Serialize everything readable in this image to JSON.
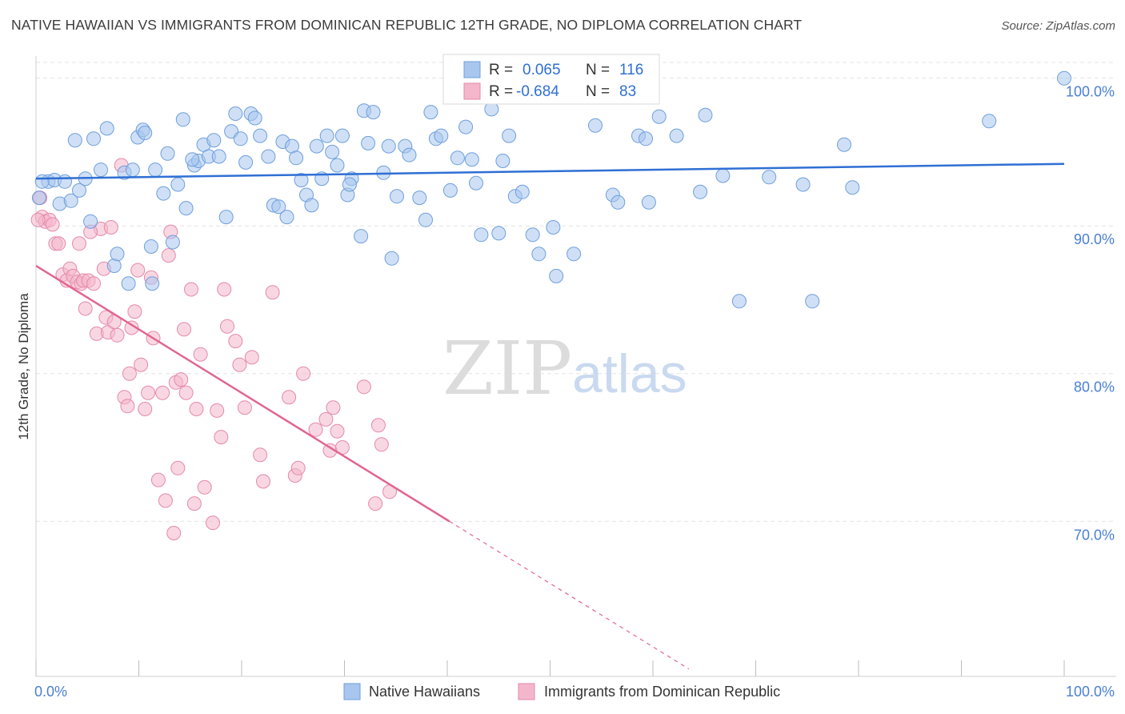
{
  "header": {
    "title": "NATIVE HAWAIIAN VS IMMIGRANTS FROM DOMINICAN REPUBLIC 12TH GRADE, NO DIPLOMA CORRELATION CHART",
    "source": "Source: ZipAtlas.com"
  },
  "watermark": {
    "zip": "ZIP",
    "atlas": "atlas"
  },
  "colors": {
    "blue": "#2f6fd4",
    "blue_fill": "#a8c6ee",
    "pink": "#e0668f",
    "pink_fill": "#f4b6cb",
    "grid": "#e3e3e3",
    "tick_text": "#4a7fd4"
  },
  "stats": {
    "blue": {
      "r_label": "R =",
      "r_value": "0.065",
      "n_label": "N =",
      "n_value": "116"
    },
    "pink": {
      "r_label": "R =",
      "r_value": "-0.684",
      "n_label": "N =",
      "n_value": "83"
    }
  },
  "chart_data": {
    "type": "scatter",
    "title": "NATIVE HAWAIIAN VS IMMIGRANTS FROM DOMINICAN REPUBLIC 12TH GRADE, NO DIPLOMA CORRELATION CHART",
    "xlabel": "",
    "ylabel": "12th Grade, No Diploma",
    "xlim": [
      0,
      100
    ],
    "ylim": [
      59.5,
      101.5
    ],
    "x_tick_labels": [
      "0.0%",
      "100.0%"
    ],
    "y_ticks": [
      70,
      80,
      90,
      100
    ],
    "y_tick_labels": [
      "70.0%",
      "80.0%",
      "90.0%",
      "100.0%"
    ],
    "grid": true,
    "legend_position": "bottom-center",
    "series": [
      {
        "name": "Native Hawaiians",
        "color": "#2f6fd4",
        "trend": {
          "x0": 0,
          "y0": 93.2,
          "x1": 100,
          "y1": 94.2
        },
        "points": [
          [
            0.3,
            91.9
          ],
          [
            1.2,
            93.0
          ],
          [
            1.8,
            93.1
          ],
          [
            2.3,
            91.5
          ],
          [
            2.8,
            93.0
          ],
          [
            3.4,
            91.7
          ],
          [
            3.8,
            95.8
          ],
          [
            4.2,
            92.4
          ],
          [
            4.8,
            93.2
          ],
          [
            5.3,
            90.3
          ],
          [
            5.6,
            95.9
          ],
          [
            6.3,
            93.8
          ],
          [
            6.9,
            96.6
          ],
          [
            7.6,
            87.3
          ],
          [
            7.9,
            88.1
          ],
          [
            8.6,
            93.6
          ],
          [
            9.0,
            86.1
          ],
          [
            9.4,
            93.8
          ],
          [
            9.9,
            96.0
          ],
          [
            10.4,
            96.5
          ],
          [
            10.6,
            96.3
          ],
          [
            11.2,
            88.6
          ],
          [
            11.6,
            93.8
          ],
          [
            12.4,
            92.2
          ],
          [
            12.8,
            94.9
          ],
          [
            13.3,
            88.9
          ],
          [
            13.8,
            92.8
          ],
          [
            14.3,
            97.2
          ],
          [
            14.6,
            91.2
          ],
          [
            15.4,
            94.1
          ],
          [
            15.8,
            94.4
          ],
          [
            16.3,
            95.5
          ],
          [
            16.8,
            94.7
          ],
          [
            17.3,
            95.8
          ],
          [
            17.8,
            94.7
          ],
          [
            18.5,
            90.6
          ],
          [
            19.0,
            96.4
          ],
          [
            19.4,
            97.6
          ],
          [
            19.9,
            95.9
          ],
          [
            20.4,
            94.3
          ],
          [
            20.9,
            97.6
          ],
          [
            21.3,
            97.3
          ],
          [
            21.8,
            96.1
          ],
          [
            22.6,
            94.7
          ],
          [
            23.1,
            91.4
          ],
          [
            23.6,
            91.3
          ],
          [
            24.0,
            95.7
          ],
          [
            24.4,
            90.6
          ],
          [
            24.9,
            95.4
          ],
          [
            25.3,
            94.6
          ],
          [
            25.8,
            93.1
          ],
          [
            26.3,
            92.1
          ],
          [
            26.8,
            91.4
          ],
          [
            27.3,
            95.4
          ],
          [
            27.8,
            93.2
          ],
          [
            28.3,
            96.1
          ],
          [
            28.8,
            95.0
          ],
          [
            29.3,
            94.1
          ],
          [
            29.8,
            96.1
          ],
          [
            30.3,
            92.1
          ],
          [
            30.7,
            93.2
          ],
          [
            31.6,
            89.3
          ],
          [
            31.9,
            97.8
          ],
          [
            32.3,
            95.6
          ],
          [
            32.8,
            97.7
          ],
          [
            33.8,
            93.6
          ],
          [
            34.3,
            95.4
          ],
          [
            34.6,
            87.8
          ],
          [
            35.1,
            92.0
          ],
          [
            35.9,
            95.4
          ],
          [
            36.3,
            94.8
          ],
          [
            37.3,
            91.9
          ],
          [
            37.9,
            90.4
          ],
          [
            38.4,
            97.7
          ],
          [
            38.9,
            95.9
          ],
          [
            39.4,
            96.1
          ],
          [
            40.3,
            92.4
          ],
          [
            41.0,
            94.6
          ],
          [
            41.8,
            96.7
          ],
          [
            42.4,
            94.5
          ],
          [
            42.8,
            92.9
          ],
          [
            43.3,
            89.4
          ],
          [
            44.3,
            97.9
          ],
          [
            45.0,
            89.5
          ],
          [
            45.4,
            94.4
          ],
          [
            46.0,
            96.1
          ],
          [
            46.6,
            92.0
          ],
          [
            47.3,
            92.3
          ],
          [
            48.3,
            89.4
          ],
          [
            48.9,
            88.1
          ],
          [
            50.3,
            89.9
          ],
          [
            50.6,
            86.6
          ],
          [
            52.3,
            88.1
          ],
          [
            54.4,
            96.8
          ],
          [
            56.1,
            92.1
          ],
          [
            56.6,
            91.6
          ],
          [
            58.6,
            96.1
          ],
          [
            59.3,
            95.9
          ],
          [
            59.6,
            91.6
          ],
          [
            60.6,
            97.4
          ],
          [
            62.3,
            96.1
          ],
          [
            64.6,
            92.3
          ],
          [
            65.1,
            97.5
          ],
          [
            66.8,
            93.4
          ],
          [
            68.4,
            84.9
          ],
          [
            71.3,
            93.3
          ],
          [
            74.6,
            92.8
          ],
          [
            75.5,
            84.9
          ],
          [
            78.6,
            95.5
          ],
          [
            79.4,
            92.6
          ],
          [
            92.7,
            97.1
          ],
          [
            100.0,
            100.0
          ],
          [
            0.6,
            93.0
          ],
          [
            11.3,
            86.1
          ],
          [
            15.2,
            94.5
          ],
          [
            30.5,
            92.8
          ]
        ]
      },
      {
        "name": "Immigrants from Dominican Republic",
        "color": "#e0668f",
        "trend": {
          "x0": 0,
          "y0": 87.3,
          "x1": 40.2,
          "y1": 70.0
        },
        "trend_dashed": {
          "x0": 40.2,
          "y0": 70.0,
          "x1": 63.5,
          "y1": 60.0
        },
        "points": [
          [
            0.4,
            91.9
          ],
          [
            0.6,
            90.6
          ],
          [
            0.9,
            90.3
          ],
          [
            1.3,
            90.4
          ],
          [
            1.6,
            90.1
          ],
          [
            1.9,
            88.8
          ],
          [
            2.2,
            88.8
          ],
          [
            2.6,
            86.7
          ],
          [
            3.0,
            86.3
          ],
          [
            3.3,
            87.1
          ],
          [
            3.6,
            86.6
          ],
          [
            4.0,
            86.2
          ],
          [
            4.2,
            88.8
          ],
          [
            4.4,
            86.1
          ],
          [
            4.6,
            86.3
          ],
          [
            4.8,
            84.4
          ],
          [
            5.1,
            86.3
          ],
          [
            5.6,
            86.1
          ],
          [
            5.9,
            82.7
          ],
          [
            6.3,
            89.8
          ],
          [
            6.6,
            87.1
          ],
          [
            6.8,
            83.8
          ],
          [
            7.0,
            82.8
          ],
          [
            7.3,
            89.9
          ],
          [
            7.6,
            83.5
          ],
          [
            7.9,
            82.6
          ],
          [
            8.3,
            94.1
          ],
          [
            8.6,
            78.4
          ],
          [
            8.9,
            77.8
          ],
          [
            9.1,
            80.0
          ],
          [
            9.3,
            83.1
          ],
          [
            9.6,
            84.2
          ],
          [
            9.9,
            87.0
          ],
          [
            10.2,
            80.6
          ],
          [
            10.6,
            77.6
          ],
          [
            10.9,
            78.7
          ],
          [
            11.2,
            86.5
          ],
          [
            11.4,
            82.4
          ],
          [
            11.9,
            72.8
          ],
          [
            12.3,
            78.7
          ],
          [
            12.6,
            71.4
          ],
          [
            12.9,
            88.0
          ],
          [
            13.1,
            89.6
          ],
          [
            13.4,
            69.2
          ],
          [
            13.6,
            79.4
          ],
          [
            13.8,
            73.6
          ],
          [
            14.1,
            79.6
          ],
          [
            14.4,
            83.0
          ],
          [
            14.6,
            78.7
          ],
          [
            15.1,
            85.7
          ],
          [
            15.4,
            71.2
          ],
          [
            15.6,
            77.6
          ],
          [
            16.0,
            81.3
          ],
          [
            16.4,
            72.3
          ],
          [
            17.2,
            69.9
          ],
          [
            17.6,
            77.5
          ],
          [
            18.0,
            75.7
          ],
          [
            18.3,
            85.7
          ],
          [
            18.6,
            83.2
          ],
          [
            19.4,
            82.2
          ],
          [
            19.8,
            80.6
          ],
          [
            20.3,
            77.7
          ],
          [
            21.0,
            81.1
          ],
          [
            21.8,
            74.5
          ],
          [
            22.1,
            72.7
          ],
          [
            23.0,
            85.5
          ],
          [
            24.6,
            78.4
          ],
          [
            25.2,
            73.1
          ],
          [
            25.5,
            73.6
          ],
          [
            26.0,
            80.0
          ],
          [
            27.2,
            76.2
          ],
          [
            28.2,
            76.9
          ],
          [
            28.6,
            74.8
          ],
          [
            28.9,
            77.7
          ],
          [
            29.3,
            76.1
          ],
          [
            29.8,
            75.0
          ],
          [
            31.9,
            79.1
          ],
          [
            33.0,
            71.2
          ],
          [
            33.3,
            76.5
          ],
          [
            33.6,
            75.2
          ],
          [
            34.4,
            72.0
          ],
          [
            0.2,
            90.4
          ],
          [
            5.3,
            89.6
          ]
        ]
      }
    ]
  },
  "legend": {
    "items": [
      {
        "label": "Native Hawaiians"
      },
      {
        "label": "Immigrants from Dominican Republic"
      }
    ]
  }
}
